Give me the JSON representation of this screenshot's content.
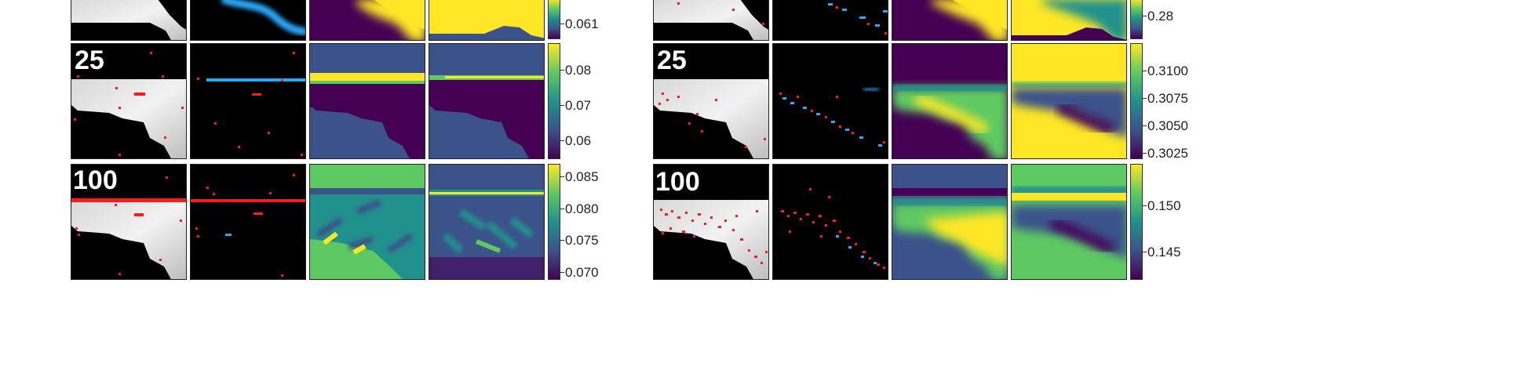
{
  "colors": {
    "viridis_dark": "#440154",
    "viridis_blue": "#3b528b",
    "viridis_teal": "#21918c",
    "viridis_green": "#5ec962",
    "viridis_yellow": "#fde725",
    "marker_red": "#ff1a1a",
    "marker_blue": "#2aa8ff",
    "background": "#000000"
  },
  "left_figure": {
    "rows": [
      {
        "label": "",
        "colorbar_ticks": [
          "0.061"
        ]
      },
      {
        "label": "25",
        "colorbar_ticks": [
          "0.08",
          "0.07",
          "0.06"
        ]
      },
      {
        "label": "100",
        "colorbar_ticks": [
          "0.085",
          "0.080",
          "0.075",
          "0.070"
        ]
      }
    ]
  },
  "right_figure": {
    "rows": [
      {
        "label": "",
        "colorbar_ticks": [
          "0.28"
        ]
      },
      {
        "label": "25",
        "colorbar_ticks": [
          "0.3100",
          "0.3075",
          "0.3050",
          "0.3025"
        ]
      },
      {
        "label": "100",
        "colorbar_ticks": [
          "0.150",
          "0.145"
        ]
      }
    ]
  }
}
